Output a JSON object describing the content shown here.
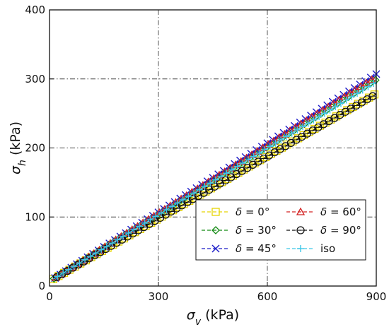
{
  "chart_data": {
    "type": "line",
    "xlabel": "σv (kPa)",
    "ylabel": "σh (kPa)",
    "xlabel_symbol": "σ",
    "xlabel_sub": "v",
    "xlabel_unit": " (kPa)",
    "ylabel_symbol": "σ",
    "ylabel_sub": "h",
    "ylabel_unit": " (kPa)",
    "xlim": [
      0,
      900
    ],
    "ylim": [
      0,
      400
    ],
    "xticks": [
      0,
      300,
      600,
      900
    ],
    "yticks": [
      0,
      100,
      200,
      300,
      400
    ],
    "grid": true,
    "legend_position": "bottom-right",
    "series": [
      {
        "name": "δ = 0°",
        "label_prefix": "δ = ",
        "label_value": "0°",
        "color": "#e6d400",
        "marker": "square",
        "x": [
          10,
          900
        ],
        "y": [
          10,
          279
        ]
      },
      {
        "name": "δ = 30°",
        "label_prefix": "δ = ",
        "label_value": "30°",
        "color": "#138a13",
        "marker": "diamond",
        "x": [
          10,
          900
        ],
        "y": [
          10,
          299
        ]
      },
      {
        "name": "δ = 45°",
        "label_prefix": "δ = ",
        "label_value": "45°",
        "color": "#1c1cc8",
        "marker": "x",
        "x": [
          10,
          900
        ],
        "y": [
          10,
          307
        ]
      },
      {
        "name": "δ = 60°",
        "label_prefix": "δ = ",
        "label_value": "60°",
        "color": "#d22020",
        "marker": "triangle",
        "x": [
          10,
          900
        ],
        "y": [
          10,
          303
        ]
      },
      {
        "name": "δ = 90°",
        "label_prefix": "δ = ",
        "label_value": "90°",
        "color": "#111111",
        "marker": "circle",
        "x": [
          10,
          900
        ],
        "y": [
          10,
          278
        ]
      },
      {
        "name": "iso",
        "label_prefix": "",
        "label_value": "iso",
        "color": "#3fc8e8",
        "marker": "plus",
        "x": [
          10,
          900
        ],
        "y": [
          10,
          296
        ]
      }
    ]
  }
}
